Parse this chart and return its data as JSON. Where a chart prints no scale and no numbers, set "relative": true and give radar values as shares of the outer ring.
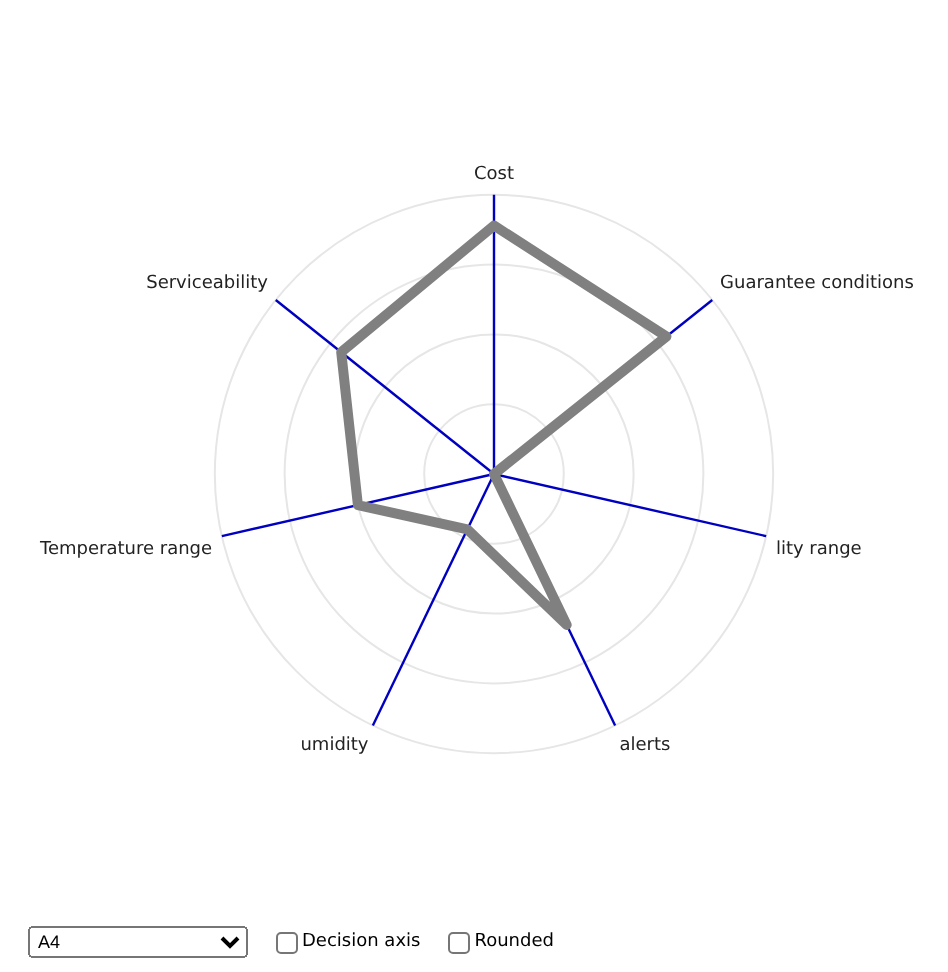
{
  "chart_data": {
    "type": "radar",
    "relative": true,
    "categories": [
      "Cost",
      "Guarantee conditions",
      "lity range",
      "alerts",
      "umidity",
      "Temperature range",
      "Serviceability"
    ],
    "series": [
      {
        "color": "#808080",
        "values": [
          0.89,
          0.79,
          0,
          0.6,
          0.22,
          0.5,
          0.7
        ]
      }
    ],
    "grid": true,
    "legend": false,
    "marker": "none",
    "line_style": "solid",
    "annotations": [
      "A4",
      "Decision axis",
      "Rounded"
    ]
  }
}
